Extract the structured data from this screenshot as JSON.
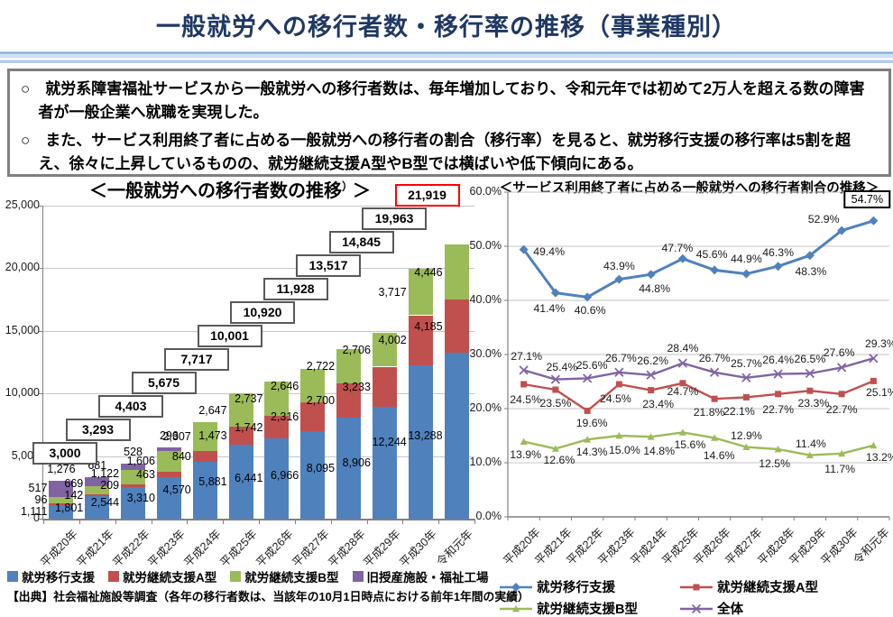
{
  "page_title": "一般就労への移行者数・移行率の推移（事業種別）",
  "summary": {
    "bullet1": "○　就労系障害福祉サービスから一般就労への移行者数は、毎年増加しており、令和元年では初めて2万人を超える数の障害者が一般企業へ就職を実現した。",
    "bullet2": "○　また、サービス利用終了者に占める一般就労への移行者の割合（移行率）を見ると、就労移行支援の移行率は5割を超え、徐々に上昇しているものの、就労継続支援A型やB型では横ばいや低下傾向にある。"
  },
  "chart_data": [
    {
      "type": "bar",
      "title_main": "＜一般就労への移行者数の推移",
      "title_sup": "）",
      "title_close": "＞",
      "categories": [
        "平成20年",
        "平成21年",
        "平成22年",
        "平成23年",
        "平成24年",
        "平成25年",
        "平成26年",
        "平成27年",
        "平成28年",
        "平成29年",
        "平成30年",
        "令和元年"
      ],
      "series": [
        {
          "name": "就労移行支援",
          "color": "#4f81bd",
          "values": [
            1111,
            1801,
            2544,
            3310,
            4570,
            5881,
            6441,
            6966,
            8095,
            8906,
            12244,
            13288
          ]
        },
        {
          "name": "就労継続支援A型",
          "color": "#c0504d",
          "values": [
            96,
            142,
            209,
            463,
            840,
            1473,
            1742,
            2316,
            2700,
            3233,
            4002,
            4185
          ]
        },
        {
          "name": "就労継続支援B型",
          "color": "#9bbb59",
          "values": [
            517,
            669,
            1122,
            1606,
            2307,
            2647,
            2737,
            2646,
            2722,
            2706,
            3717,
            4446
          ]
        },
        {
          "name": "旧授産施設・福祉工場",
          "color": "#8064a2",
          "values": [
            1276,
            681,
            528,
            296,
            0,
            0,
            0,
            0,
            0,
            0,
            0,
            0
          ]
        }
      ],
      "totals": [
        3000,
        3293,
        4403,
        5675,
        7717,
        10001,
        10920,
        11928,
        13517,
        14845,
        19963,
        21919
      ],
      "highlight_last_total": true,
      "highlight_color": "#ff0000",
      "ylim": [
        0,
        25000
      ],
      "yticks": [
        "0",
        "5,000",
        "10,000",
        "15,000",
        "20,000",
        "25,000"
      ],
      "grid": true,
      "legend_position": "bottom",
      "source": "【出典】社会福祉施設等調査（各年の移行者数は、当該年の10月1日時点における前年1年間の実績）"
    },
    {
      "type": "line",
      "title": "＜サービス利用終了者に占める一般就労への移行者割合の推移＞",
      "categories": [
        "平成20年",
        "平成21年",
        "平成22年",
        "平成23年",
        "平成24年",
        "平成25年",
        "平成26年",
        "平成27年",
        "平成28年",
        "平成29年",
        "平成30年",
        "令和元年"
      ],
      "series": [
        {
          "name": "就労移行支援",
          "color": "#4f81bd",
          "marker": "diamond",
          "values": [
            49.4,
            41.4,
            40.6,
            43.9,
            44.8,
            47.7,
            45.6,
            44.9,
            46.3,
            48.3,
            52.9,
            54.7
          ]
        },
        {
          "name": "就労継続支援A型",
          "color": "#c0504d",
          "marker": "square",
          "values": [
            24.5,
            23.5,
            19.6,
            24.5,
            23.4,
            24.7,
            21.8,
            22.1,
            22.7,
            23.3,
            22.7,
            25.1
          ]
        },
        {
          "name": "就労継続支援B型",
          "color": "#9bbb59",
          "marker": "triangle",
          "values": [
            13.9,
            12.6,
            14.3,
            15.0,
            14.8,
            15.6,
            14.6,
            12.9,
            12.5,
            11.4,
            11.7,
            13.2
          ]
        },
        {
          "name": "全体",
          "color": "#8064a2",
          "marker": "x",
          "values": [
            27.1,
            25.4,
            25.6,
            26.7,
            26.2,
            28.4,
            26.7,
            25.7,
            26.4,
            26.5,
            27.6,
            29.3
          ]
        }
      ],
      "ylim": [
        0,
        60
      ],
      "yticks": [
        "0.0%",
        "10.0%",
        "20.0%",
        "30.0%",
        "40.0%",
        "50.0%",
        "60.0%"
      ],
      "grid": true,
      "legend_position": "bottom",
      "highlight_last_blue_label": true
    }
  ]
}
